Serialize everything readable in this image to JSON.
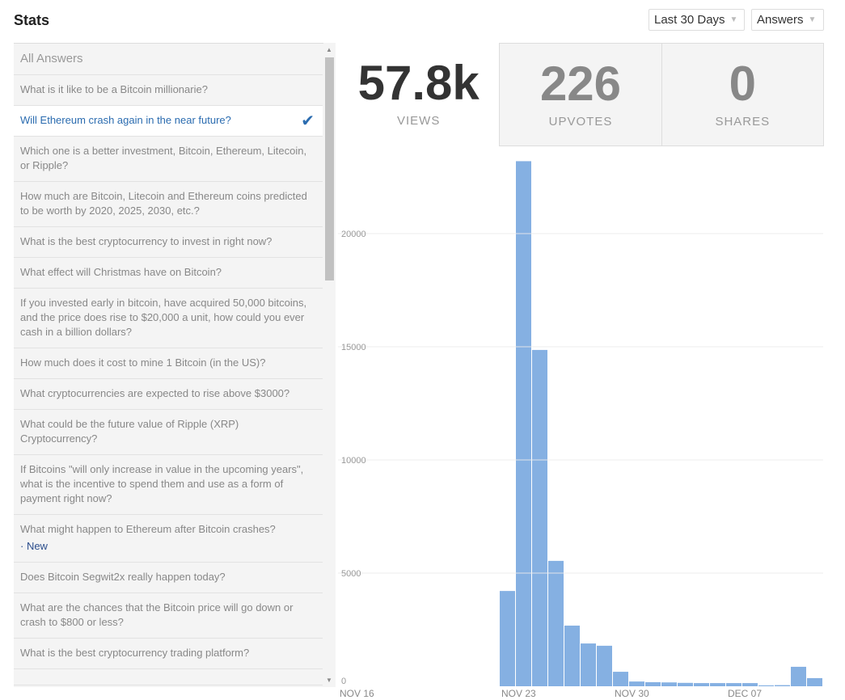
{
  "header": {
    "title": "Stats",
    "range": "Last 30 Days",
    "type": "Answers"
  },
  "list": {
    "head": "All Answers",
    "items": [
      {
        "text": "What is it like to be a Bitcoin millionarie?"
      },
      {
        "text": "Will Ethereum crash again in the near future?",
        "selected": true
      },
      {
        "text": "Which one is a better investment, Bitcoin, Ethereum, Litecoin, or Ripple?"
      },
      {
        "text": "How much are Bitcoin, Litecoin and Ethereum coins predicted to be worth by 2020, 2025, 2030, etc.?"
      },
      {
        "text": "What is the best cryptocurrency to invest in right now?"
      },
      {
        "text": "What effect will Christmas have on Bitcoin?"
      },
      {
        "text": "If you invested early in bitcoin, have acquired 50,000 bitcoins, and the price does rise to $20,000 a unit, how could you ever cash in a billion dollars?"
      },
      {
        "text": "How much does it cost to mine 1 Bitcoin (in the US)?"
      },
      {
        "text": "What cryptocurrencies are expected to rise above $3000?"
      },
      {
        "text": "What could be the future value of Ripple (XRP) Cryptocurrency?"
      },
      {
        "text": "If Bitcoins \"will only increase in value in the upcoming years\", what is the incentive to spend them and use as a form of payment right now?"
      },
      {
        "text": "What might happen to Ethereum after Bitcoin crashes?",
        "badge": "· New"
      },
      {
        "text": "Does Bitcoin Segwit2x really happen today?"
      },
      {
        "text": "What are the chances that the Bitcoin price will go down or crash to $800 or less?"
      },
      {
        "text": "What is the best cryptocurrency trading platform?"
      },
      {
        "text": ""
      }
    ]
  },
  "stats": [
    {
      "value": "57.8k",
      "label": "VIEWS"
    },
    {
      "value": "226",
      "label": "UPVOTES"
    },
    {
      "value": "0",
      "label": "SHARES"
    }
  ],
  "chart_data": {
    "type": "bar",
    "bar_color": "#85b0e2",
    "ylim": [
      0,
      23500
    ],
    "yticks": [
      0,
      5000,
      10000,
      15000,
      20000
    ],
    "xticks": [
      "NOV 16",
      "NOV 23",
      "NOV 30",
      "DEC 07"
    ],
    "values": [
      0,
      0,
      0,
      0,
      0,
      0,
      0,
      0,
      0,
      0,
      4210,
      23200,
      14860,
      5540,
      2680,
      1890,
      1790,
      640,
      210,
      180,
      170,
      150,
      140,
      140,
      140,
      140,
      40,
      50,
      860,
      360
    ]
  }
}
